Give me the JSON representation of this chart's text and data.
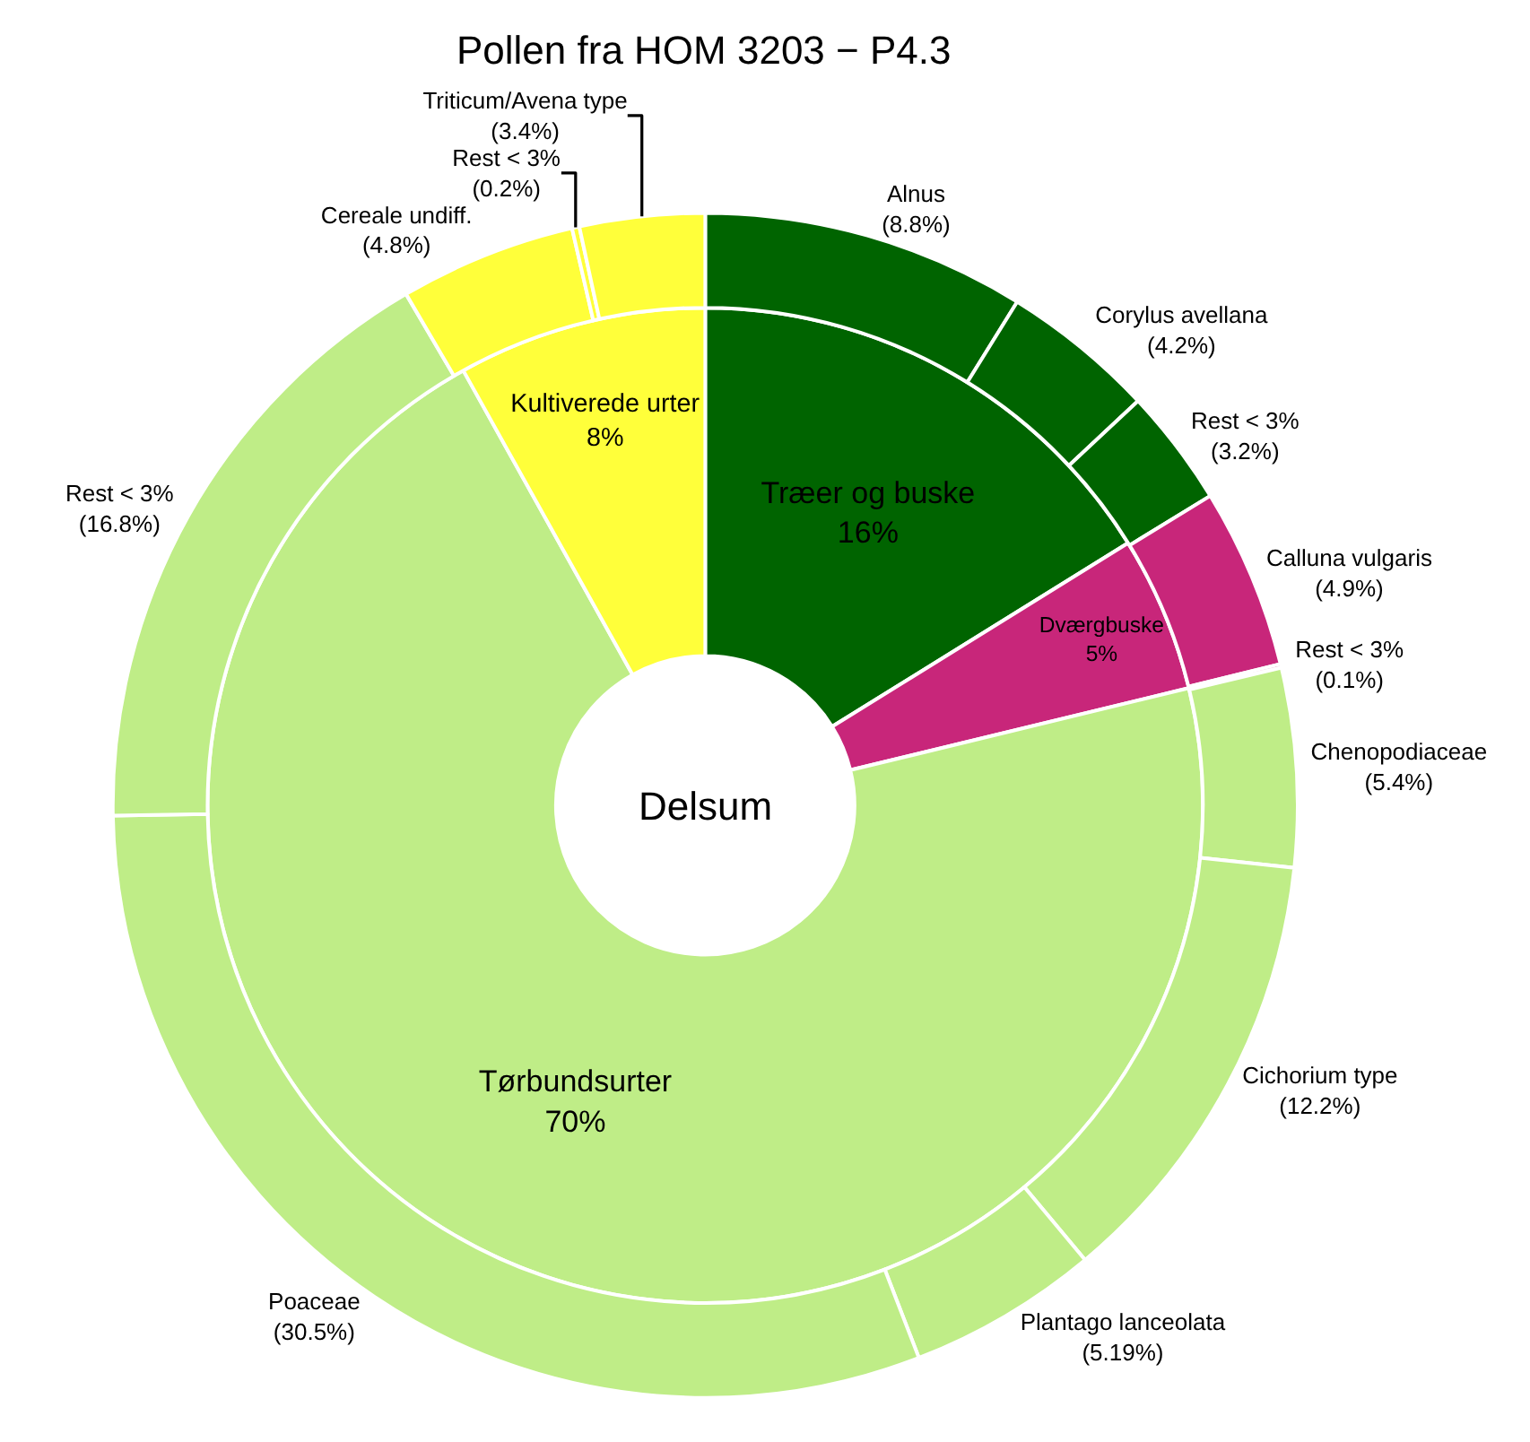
{
  "chart_data": [
    {
      "type": "donut",
      "title": "Pollen fra HOM 3203 − P4.3",
      "annotations": [
        "Delsum"
      ],
      "categories": [
        "Træer og buske",
        "Dværgbuske",
        "Tørbundsurter",
        "Kultiverede urter"
      ],
      "values": [
        16,
        5,
        70,
        8
      ],
      "value_labels": [
        "16%",
        "5%",
        "70%",
        "8%"
      ],
      "colors": [
        "#006400",
        "#c8267a",
        "#bfed87",
        "#ffff3a"
      ]
    },
    {
      "type": "donut",
      "categories": [
        "Alnus",
        "Corylus avellana",
        "Rest < 3%",
        "Calluna vulgaris",
        "Rest < 3%",
        "Chenopodiaceae",
        "Cichorium type",
        "Plantago lanceolata",
        "Poaceae",
        "Rest < 3%",
        "Cereale undiff.",
        "Rest < 3%",
        "Triticum/Avena type"
      ],
      "values": [
        8.8,
        4.2,
        3.2,
        4.9,
        0.1,
        5.4,
        12.2,
        5.19,
        30.5,
        16.8,
        4.8,
        0.2,
        3.4
      ],
      "value_labels": [
        "(8.8%)",
        "(4.2%)",
        "(3.2%)",
        "(4.9%)",
        "(0.1%)",
        "(5.4%)",
        "(12.2%)",
        "(5.19%)",
        "(30.5%)",
        "(16.8%)",
        "(4.8%)",
        "(0.2%)",
        "(3.4%)"
      ],
      "colors": [
        "#006400",
        "#006400",
        "#006400",
        "#c8267a",
        "#c8267a",
        "#bfed87",
        "#bfed87",
        "#bfed87",
        "#bfed87",
        "#bfed87",
        "#ffff3a",
        "#ffff3a",
        "#ffff3a"
      ]
    }
  ]
}
